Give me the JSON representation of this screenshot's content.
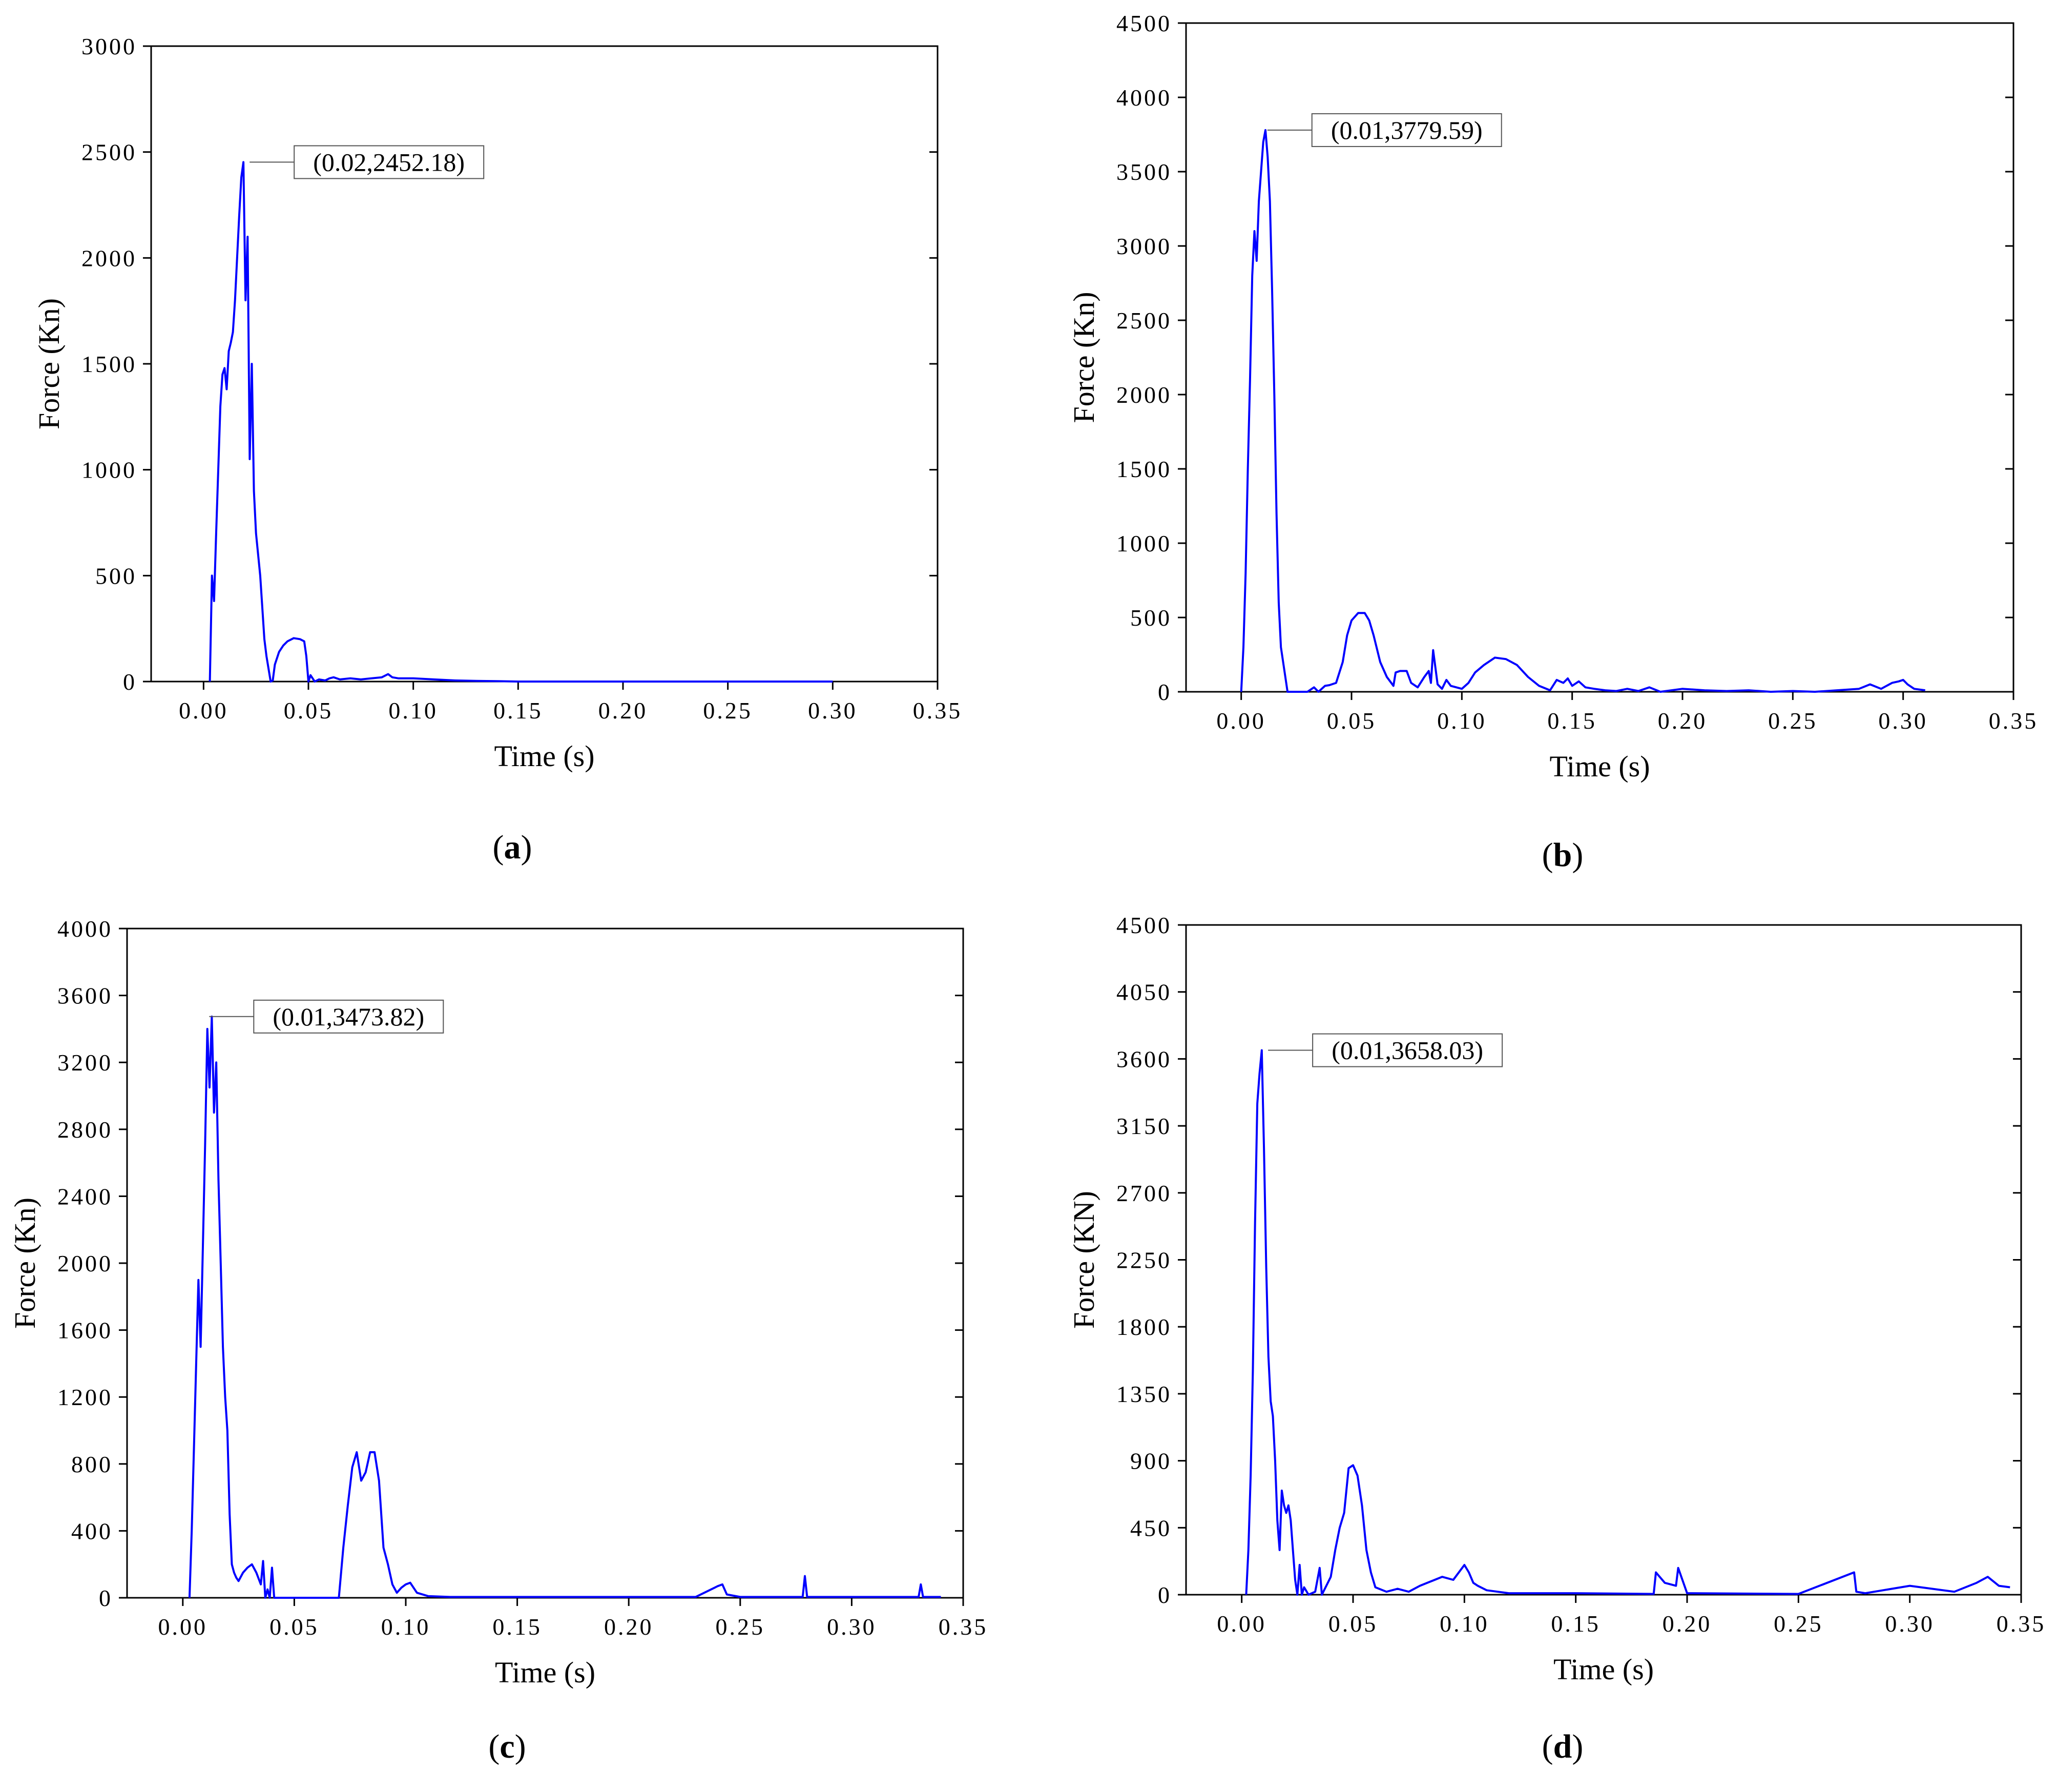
{
  "chart_data": [
    {
      "type": "line",
      "panel_label": "a",
      "xlabel": "Time (s)",
      "ylabel": "Force (Kn)",
      "xlim": [
        -0.025,
        0.35
      ],
      "ylim": [
        0,
        3000
      ],
      "x_ticks": [
        "0.00",
        "0.05",
        "0.10",
        "0.15",
        "0.20",
        "0.25",
        "0.30",
        "0.35"
      ],
      "y_ticks": [
        "0",
        "500",
        "1000",
        "1500",
        "2000",
        "2500",
        "3000"
      ],
      "line_color": "#0000ff",
      "grid": false,
      "annotation": {
        "text": "(0.02,2452.18)",
        "x": 0.02,
        "y": 2452.18
      },
      "series": [
        {
          "x": [
            0.003,
            0.004,
            0.005,
            0.006,
            0.007,
            0.008,
            0.009,
            0.01,
            0.011,
            0.012,
            0.013,
            0.014,
            0.015,
            0.016,
            0.017,
            0.018,
            0.019,
            0.02,
            0.021,
            0.022,
            0.023,
            0.024,
            0.025,
            0.027,
            0.029,
            0.03,
            0.032,
            0.033,
            0.034,
            0.036,
            0.038,
            0.04,
            0.043,
            0.046,
            0.048,
            0.049,
            0.05,
            0.051,
            0.053,
            0.055,
            0.058,
            0.06,
            0.062,
            0.065,
            0.07,
            0.075,
            0.08,
            0.085,
            0.088,
            0.09,
            0.093,
            0.1,
            0.11,
            0.12,
            0.13,
            0.14,
            0.15,
            0.2,
            0.25,
            0.3
          ],
          "y": [
            0,
            500,
            380,
            700,
            1000,
            1300,
            1450,
            1480,
            1380,
            1560,
            1600,
            1650,
            1800,
            2000,
            2200,
            2380,
            2452.18,
            1800,
            2100,
            1050,
            1500,
            900,
            700,
            500,
            200,
            120,
            0,
            5,
            80,
            140,
            170,
            190,
            205,
            200,
            190,
            120,
            0,
            30,
            0,
            10,
            5,
            15,
            20,
            10,
            15,
            10,
            15,
            20,
            35,
            20,
            15,
            15,
            10,
            5,
            3,
            2,
            0,
            0,
            0,
            0
          ]
        }
      ]
    },
    {
      "type": "line",
      "panel_label": "b",
      "xlabel": "Time (s)",
      "ylabel": "Force (Kn)",
      "xlim": [
        -0.025,
        0.35
      ],
      "ylim": [
        0,
        4500
      ],
      "x_ticks": [
        "0.00",
        "0.05",
        "0.10",
        "0.15",
        "0.20",
        "0.25",
        "0.30",
        "0.35"
      ],
      "y_ticks": [
        "0",
        "500",
        "1000",
        "1500",
        "2000",
        "2500",
        "3000",
        "3500",
        "4000",
        "4500"
      ],
      "line_color": "#0000ff",
      "grid": false,
      "annotation": {
        "text": "(0.01,3779.59)",
        "x": 0.01,
        "y": 3779.59
      },
      "series": [
        {
          "x": [
            0.0,
            0.001,
            0.002,
            0.003,
            0.004,
            0.005,
            0.006,
            0.007,
            0.008,
            0.009,
            0.01,
            0.011,
            0.012,
            0.013,
            0.014,
            0.015,
            0.016,
            0.017,
            0.018,
            0.019,
            0.02,
            0.021,
            0.025,
            0.03,
            0.033,
            0.035,
            0.038,
            0.04,
            0.043,
            0.046,
            0.048,
            0.05,
            0.053,
            0.056,
            0.058,
            0.06,
            0.063,
            0.066,
            0.069,
            0.07,
            0.072,
            0.075,
            0.077,
            0.08,
            0.083,
            0.085,
            0.086,
            0.087,
            0.089,
            0.091,
            0.093,
            0.095,
            0.1,
            0.103,
            0.106,
            0.11,
            0.115,
            0.12,
            0.125,
            0.13,
            0.135,
            0.14,
            0.143,
            0.146,
            0.148,
            0.15,
            0.153,
            0.156,
            0.16,
            0.165,
            0.17,
            0.175,
            0.18,
            0.185,
            0.19,
            0.2,
            0.21,
            0.22,
            0.23,
            0.24,
            0.25,
            0.26,
            0.27,
            0.28,
            0.285,
            0.29,
            0.295,
            0.298,
            0.3,
            0.302,
            0.305,
            0.31
          ],
          "y": [
            0,
            300,
            800,
            1500,
            2100,
            2800,
            3100,
            2900,
            3300,
            3500,
            3700,
            3779.59,
            3600,
            3300,
            2700,
            2000,
            1200,
            600,
            300,
            200,
            100,
            0,
            0,
            0,
            30,
            0,
            40,
            45,
            60,
            200,
            380,
            480,
            530,
            530,
            480,
            380,
            200,
            100,
            40,
            130,
            140,
            140,
            60,
            30,
            100,
            140,
            60,
            280,
            50,
            20,
            80,
            40,
            20,
            60,
            130,
            180,
            230,
            220,
            180,
            100,
            40,
            10,
            80,
            60,
            90,
            40,
            70,
            30,
            20,
            10,
            5,
            20,
            5,
            30,
            0,
            20,
            10,
            5,
            10,
            0,
            5,
            0,
            10,
            20,
            50,
            20,
            60,
            70,
            80,
            50,
            20,
            10
          ]
        }
      ]
    },
    {
      "type": "line",
      "panel_label": "c",
      "xlabel": "Time (s)",
      "ylabel": "Force (Kn)",
      "xlim": [
        -0.025,
        0.35
      ],
      "ylim": [
        0,
        4000
      ],
      "x_ticks": [
        "0.00",
        "0.05",
        "0.10",
        "0.15",
        "0.20",
        "0.25",
        "0.30",
        "0.35"
      ],
      "y_ticks": [
        "0",
        "400",
        "800",
        "1200",
        "1600",
        "2000",
        "2400",
        "2800",
        "3200",
        "3600",
        "4000"
      ],
      "line_color": "#0000ff",
      "grid": false,
      "annotation": {
        "text": "(0.01,3473.82)",
        "x": 0.01,
        "y": 3473.82
      },
      "series": [
        {
          "x": [
            0.003,
            0.004,
            0.005,
            0.006,
            0.007,
            0.008,
            0.009,
            0.01,
            0.011,
            0.012,
            0.013,
            0.014,
            0.015,
            0.016,
            0.017,
            0.018,
            0.019,
            0.02,
            0.021,
            0.022,
            0.023,
            0.024,
            0.025,
            0.027,
            0.029,
            0.031,
            0.033,
            0.035,
            0.036,
            0.037,
            0.038,
            0.039,
            0.04,
            0.041,
            0.045,
            0.05,
            0.055,
            0.06,
            0.065,
            0.07,
            0.072,
            0.074,
            0.076,
            0.078,
            0.08,
            0.082,
            0.084,
            0.086,
            0.088,
            0.09,
            0.092,
            0.094,
            0.096,
            0.098,
            0.1,
            0.102,
            0.105,
            0.11,
            0.12,
            0.13,
            0.14,
            0.15,
            0.16,
            0.17,
            0.2,
            0.23,
            0.24,
            0.242,
            0.244,
            0.25,
            0.27,
            0.278,
            0.279,
            0.28,
            0.3,
            0.32,
            0.33,
            0.331,
            0.332,
            0.34
          ],
          "y": [
            0,
            400,
            900,
            1400,
            1900,
            1500,
            2100,
            2700,
            3400,
            3050,
            3473.82,
            2900,
            3200,
            2500,
            2000,
            1500,
            1200,
            1000,
            500,
            200,
            150,
            120,
            100,
            150,
            180,
            200,
            150,
            80,
            220,
            0,
            50,
            0,
            180,
            0,
            0,
            0,
            0,
            0,
            0,
            0,
            300,
            550,
            780,
            870,
            700,
            750,
            870,
            870,
            700,
            300,
            200,
            80,
            30,
            60,
            80,
            90,
            30,
            10,
            5,
            5,
            5,
            5,
            5,
            5,
            5,
            5,
            70,
            80,
            20,
            5,
            5,
            5,
            130,
            5,
            5,
            5,
            5,
            80,
            5,
            5
          ]
        }
      ]
    },
    {
      "type": "line",
      "panel_label": "d",
      "xlabel": "Time (s)",
      "ylabel": "Force (KN)",
      "xlim": [
        -0.025,
        0.35
      ],
      "ylim": [
        0,
        4500
      ],
      "x_ticks": [
        "0.00",
        "0.05",
        "0.10",
        "0.15",
        "0.20",
        "0.25",
        "0.30",
        "0.35"
      ],
      "y_ticks": [
        "0",
        "450",
        "900",
        "1350",
        "1800",
        "2250",
        "2700",
        "3150",
        "3600",
        "4050",
        "4500"
      ],
      "line_color": "#0000ff",
      "grid": false,
      "annotation": {
        "text": "(0.01,3658.03)",
        "x": 0.01,
        "y": 3658.03
      },
      "series": [
        {
          "x": [
            0.002,
            0.003,
            0.004,
            0.005,
            0.006,
            0.007,
            0.008,
            0.009,
            0.01,
            0.011,
            0.012,
            0.013,
            0.014,
            0.015,
            0.016,
            0.017,
            0.018,
            0.019,
            0.02,
            0.021,
            0.022,
            0.023,
            0.024,
            0.025,
            0.026,
            0.027,
            0.028,
            0.03,
            0.033,
            0.035,
            0.036,
            0.038,
            0.04,
            0.042,
            0.044,
            0.046,
            0.048,
            0.05,
            0.052,
            0.054,
            0.056,
            0.058,
            0.06,
            0.065,
            0.07,
            0.075,
            0.08,
            0.085,
            0.09,
            0.095,
            0.1,
            0.102,
            0.104,
            0.106,
            0.11,
            0.12,
            0.15,
            0.185,
            0.186,
            0.19,
            0.195,
            0.196,
            0.2,
            0.25,
            0.275,
            0.276,
            0.28,
            0.3,
            0.32,
            0.33,
            0.335,
            0.34,
            0.345
          ],
          "y": [
            0,
            300,
            800,
            1500,
            2500,
            3300,
            3500,
            3658.03,
            3000,
            2200,
            1600,
            1300,
            1200,
            900,
            500,
            300,
            700,
            600,
            550,
            600,
            500,
            300,
            100,
            0,
            200,
            0,
            50,
            0,
            20,
            180,
            0,
            60,
            120,
            300,
            450,
            550,
            850,
            870,
            800,
            600,
            300,
            150,
            50,
            20,
            40,
            20,
            60,
            90,
            120,
            100,
            200,
            150,
            80,
            60,
            30,
            10,
            10,
            5,
            150,
            80,
            60,
            180,
            10,
            5,
            150,
            20,
            10,
            60,
            20,
            80,
            120,
            60,
            50
          ]
        }
      ]
    }
  ]
}
